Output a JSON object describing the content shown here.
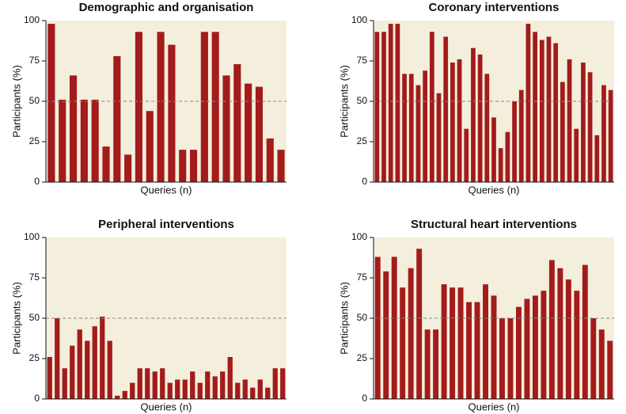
{
  "chart_data": [
    {
      "type": "bar",
      "title": "Demographic and organisation",
      "xlabel": "Queries (n)",
      "ylabel": "Participants (%)",
      "color": "#a31b1b",
      "background": "#f3efdc",
      "values": [
        98,
        51,
        66,
        51,
        51,
        22,
        78,
        17,
        93,
        44,
        93,
        85,
        20,
        20,
        93,
        93,
        66,
        73,
        61,
        59,
        27,
        20
      ],
      "ylim": [
        0,
        100
      ],
      "yticks": [
        0,
        25,
        50,
        75,
        100
      ],
      "hline": 50
    },
    {
      "type": "bar",
      "title": "Coronary interventions",
      "xlabel": "Queries (n)",
      "ylabel": "Participants (%)",
      "color": "#a31b1b",
      "background": "#f3efdc",
      "values": [
        93,
        93,
        98,
        98,
        67,
        67,
        60,
        69,
        93,
        55,
        90,
        74,
        76,
        33,
        83,
        79,
        67,
        40,
        21,
        31,
        50,
        57,
        98,
        93,
        88,
        90,
        86,
        62,
        76,
        33,
        74,
        68,
        29,
        60,
        57
      ],
      "ylim": [
        0,
        100
      ],
      "yticks": [
        0,
        25,
        50,
        75,
        100
      ],
      "hline": 50
    },
    {
      "type": "bar",
      "title": "Peripheral interventions",
      "xlabel": "Queries (n)",
      "ylabel": "Participants (%)",
      "color": "#a31b1b",
      "background": "#f3efdc",
      "values": [
        26,
        50,
        19,
        33,
        43,
        36,
        45,
        51,
        36,
        2,
        5,
        10,
        19,
        19,
        17,
        19,
        10,
        12,
        12,
        17,
        10,
        17,
        14,
        17,
        26,
        10,
        12,
        7,
        12,
        7,
        19,
        19
      ],
      "ylim": [
        0,
        100
      ],
      "yticks": [
        0,
        25,
        50,
        75,
        100
      ],
      "hline": 50
    },
    {
      "type": "bar",
      "title": "Structural heart interventions",
      "xlabel": "Queries (n)",
      "ylabel": "Participants (%)",
      "color": "#a31b1b",
      "background": "#f3efdc",
      "values": [
        88,
        79,
        88,
        69,
        81,
        93,
        43,
        43,
        71,
        69,
        69,
        60,
        60,
        71,
        64,
        50,
        50,
        57,
        62,
        64,
        67,
        86,
        81,
        74,
        67,
        83,
        50,
        43,
        36
      ],
      "ylim": [
        0,
        100
      ],
      "yticks": [
        0,
        25,
        50,
        75,
        100
      ],
      "hline": 50
    }
  ]
}
